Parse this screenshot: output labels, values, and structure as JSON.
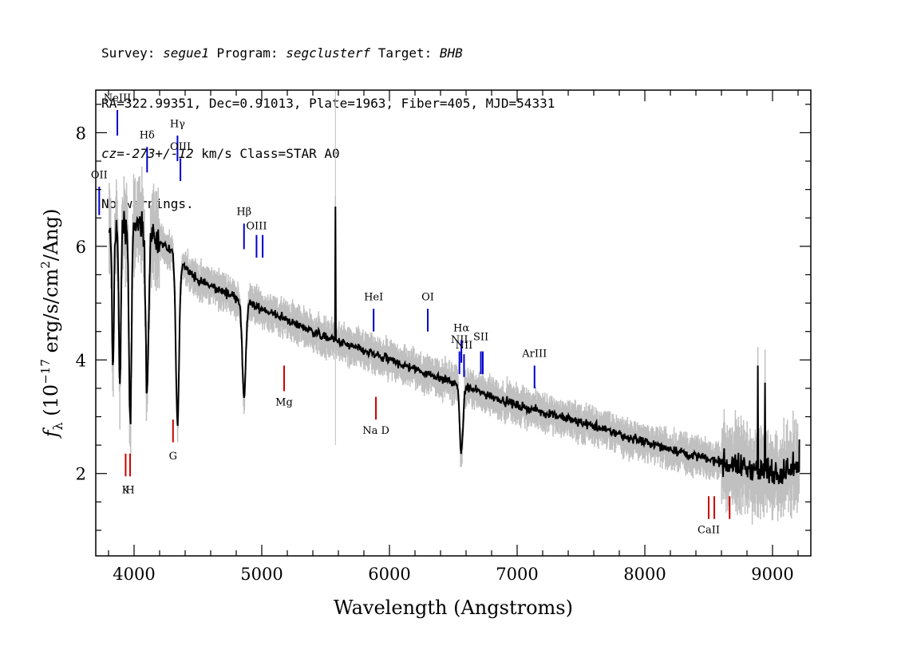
{
  "header": {
    "survey_label": "Survey: ",
    "survey": "segue1",
    "program_label": " Program: ",
    "program": "segclusterf",
    "target_label": " Target: ",
    "target": "BHB",
    "line2": "RA=322.99351, Dec=0.91013, Plate=1963, Fiber=405, MJD=54331",
    "cz": "cz=-273+/-12",
    "line3_rest": " km/s Class=STAR A0",
    "line4": "No warnings."
  },
  "chart_data": {
    "type": "line",
    "xlabel": "Wavelength (Angstroms)",
    "ylabel_prefix": "f",
    "ylabel_sub": "λ",
    "ylabel_main": " (10",
    "ylabel_exp": "−17",
    "ylabel_units": " erg/s/cm",
    "ylabel_exp2": "2",
    "ylabel_end": "/Ang)",
    "xlim": [
      3700,
      9300
    ],
    "ylim": [
      0.55,
      8.75
    ],
    "xticks": [
      4000,
      5000,
      6000,
      7000,
      8000,
      9000
    ],
    "yticks": [
      2,
      4,
      6,
      8
    ],
    "x_minor_step": 200,
    "y_minor_step": 0.5,
    "colors": {
      "spectrum": "#000000",
      "error": "#c0c0c0",
      "emission": "#0000cc",
      "absorption": "#cc0000"
    },
    "continuum": [
      {
        "x": 3800,
        "y": 6.2
      },
      {
        "x": 3900,
        "y": 6.4
      },
      {
        "x": 4000,
        "y": 6.4
      },
      {
        "x": 4200,
        "y": 6.1
      },
      {
        "x": 4500,
        "y": 5.4
      },
      {
        "x": 5000,
        "y": 4.9
      },
      {
        "x": 5500,
        "y": 4.4
      },
      {
        "x": 6000,
        "y": 4.0
      },
      {
        "x": 6500,
        "y": 3.6
      },
      {
        "x": 7000,
        "y": 3.2
      },
      {
        "x": 7500,
        "y": 2.9
      },
      {
        "x": 8000,
        "y": 2.55
      },
      {
        "x": 8500,
        "y": 2.25
      },
      {
        "x": 9000,
        "y": 2.0
      },
      {
        "x": 9200,
        "y": 2.1
      }
    ],
    "absorption_features": [
      {
        "x": 3835,
        "depth": 2.6,
        "width": 10
      },
      {
        "x": 3889,
        "depth": 2.8,
        "width": 12
      },
      {
        "x": 3970,
        "depth": 3.6,
        "width": 14
      },
      {
        "x": 4102,
        "depth": 2.8,
        "width": 16
      },
      {
        "x": 4340,
        "depth": 2.9,
        "width": 18
      },
      {
        "x": 4861,
        "depth": 1.7,
        "width": 20
      },
      {
        "x": 6563,
        "depth": 1.2,
        "width": 18
      }
    ],
    "spikes": [
      {
        "x": 5577,
        "y": 6.7
      },
      {
        "x": 8885,
        "y": 3.9
      },
      {
        "x": 8940,
        "y": 3.6
      }
    ],
    "end_point": {
      "x": 9210,
      "y": 2.6
    },
    "emission_lines": [
      {
        "label": "NeIII",
        "x": 3869,
        "y1": 7.95,
        "y2": 8.4,
        "label_y": 8.55
      },
      {
        "label": "OII",
        "x": 3727,
        "y1": 6.55,
        "y2": 7.05,
        "label_y": 7.2
      },
      {
        "label": "Hδ",
        "x": 4102,
        "y1": 7.3,
        "y2": 7.75,
        "label_y": 7.9
      },
      {
        "label": "Hγ",
        "x": 4340,
        "y1": 7.5,
        "y2": 7.95,
        "label_y": 8.1
      },
      {
        "label": "OIII",
        "x": 4363,
        "y1": 7.15,
        "y2": 7.55,
        "label_y": 7.7
      },
      {
        "label": "Hβ",
        "x": 4861,
        "y1": 5.95,
        "y2": 6.4,
        "label_y": 6.55
      },
      {
        "label": "OIII",
        "x": 4959,
        "y1": 5.8,
        "y2": 6.2,
        "label_y": 6.3
      },
      {
        "label": "",
        "x": 5007,
        "y1": 5.8,
        "y2": 6.2,
        "label_y": 6.3
      },
      {
        "label": "HeI",
        "x": 5876,
        "y1": 4.5,
        "y2": 4.9,
        "label_y": 5.05
      },
      {
        "label": "OI",
        "x": 6300,
        "y1": 4.5,
        "y2": 4.9,
        "label_y": 5.05
      },
      {
        "label": "NII",
        "x": 6548,
        "y1": 3.75,
        "y2": 4.15,
        "label_y": 4.3
      },
      {
        "label": "Hα",
        "x": 6563,
        "y1": 3.95,
        "y2": 4.35,
        "label_y": 4.5
      },
      {
        "label": "NII",
        "x": 6584,
        "y1": 3.7,
        "y2": 4.1,
        "label_y": 4.2
      },
      {
        "label": "SII",
        "x": 6716,
        "y1": 3.75,
        "y2": 4.15,
        "label_y": 4.35
      },
      {
        "label": "",
        "x": 6731,
        "y1": 3.75,
        "y2": 4.15,
        "label_y": 4.35
      },
      {
        "label": "ArIII",
        "x": 7136,
        "y1": 3.5,
        "y2": 3.9,
        "label_y": 4.05
      }
    ],
    "absorption_lines": [
      {
        "label": "K",
        "x": 3934,
        "y1": 1.95,
        "y2": 2.35,
        "label_y": 1.65
      },
      {
        "label": "H",
        "x": 3969,
        "y1": 1.95,
        "y2": 2.35,
        "label_y": 1.65
      },
      {
        "label": "G",
        "x": 4305,
        "y1": 2.55,
        "y2": 2.95,
        "label_y": 2.25
      },
      {
        "label": "Mg",
        "x": 5175,
        "y1": 3.45,
        "y2": 3.9,
        "label_y": 3.2
      },
      {
        "label": "Na D",
        "x": 5894,
        "y1": 2.95,
        "y2": 3.35,
        "label_y": 2.7
      },
      {
        "label": "CaII",
        "x": 8500,
        "y1": 1.2,
        "y2": 1.6,
        "label_y": 0.95
      },
      {
        "label": "",
        "x": 8544,
        "y1": 1.2,
        "y2": 1.6,
        "label_y": 0.95
      },
      {
        "label": "",
        "x": 8664,
        "y1": 1.2,
        "y2": 1.6,
        "label_y": 0.95
      }
    ]
  }
}
